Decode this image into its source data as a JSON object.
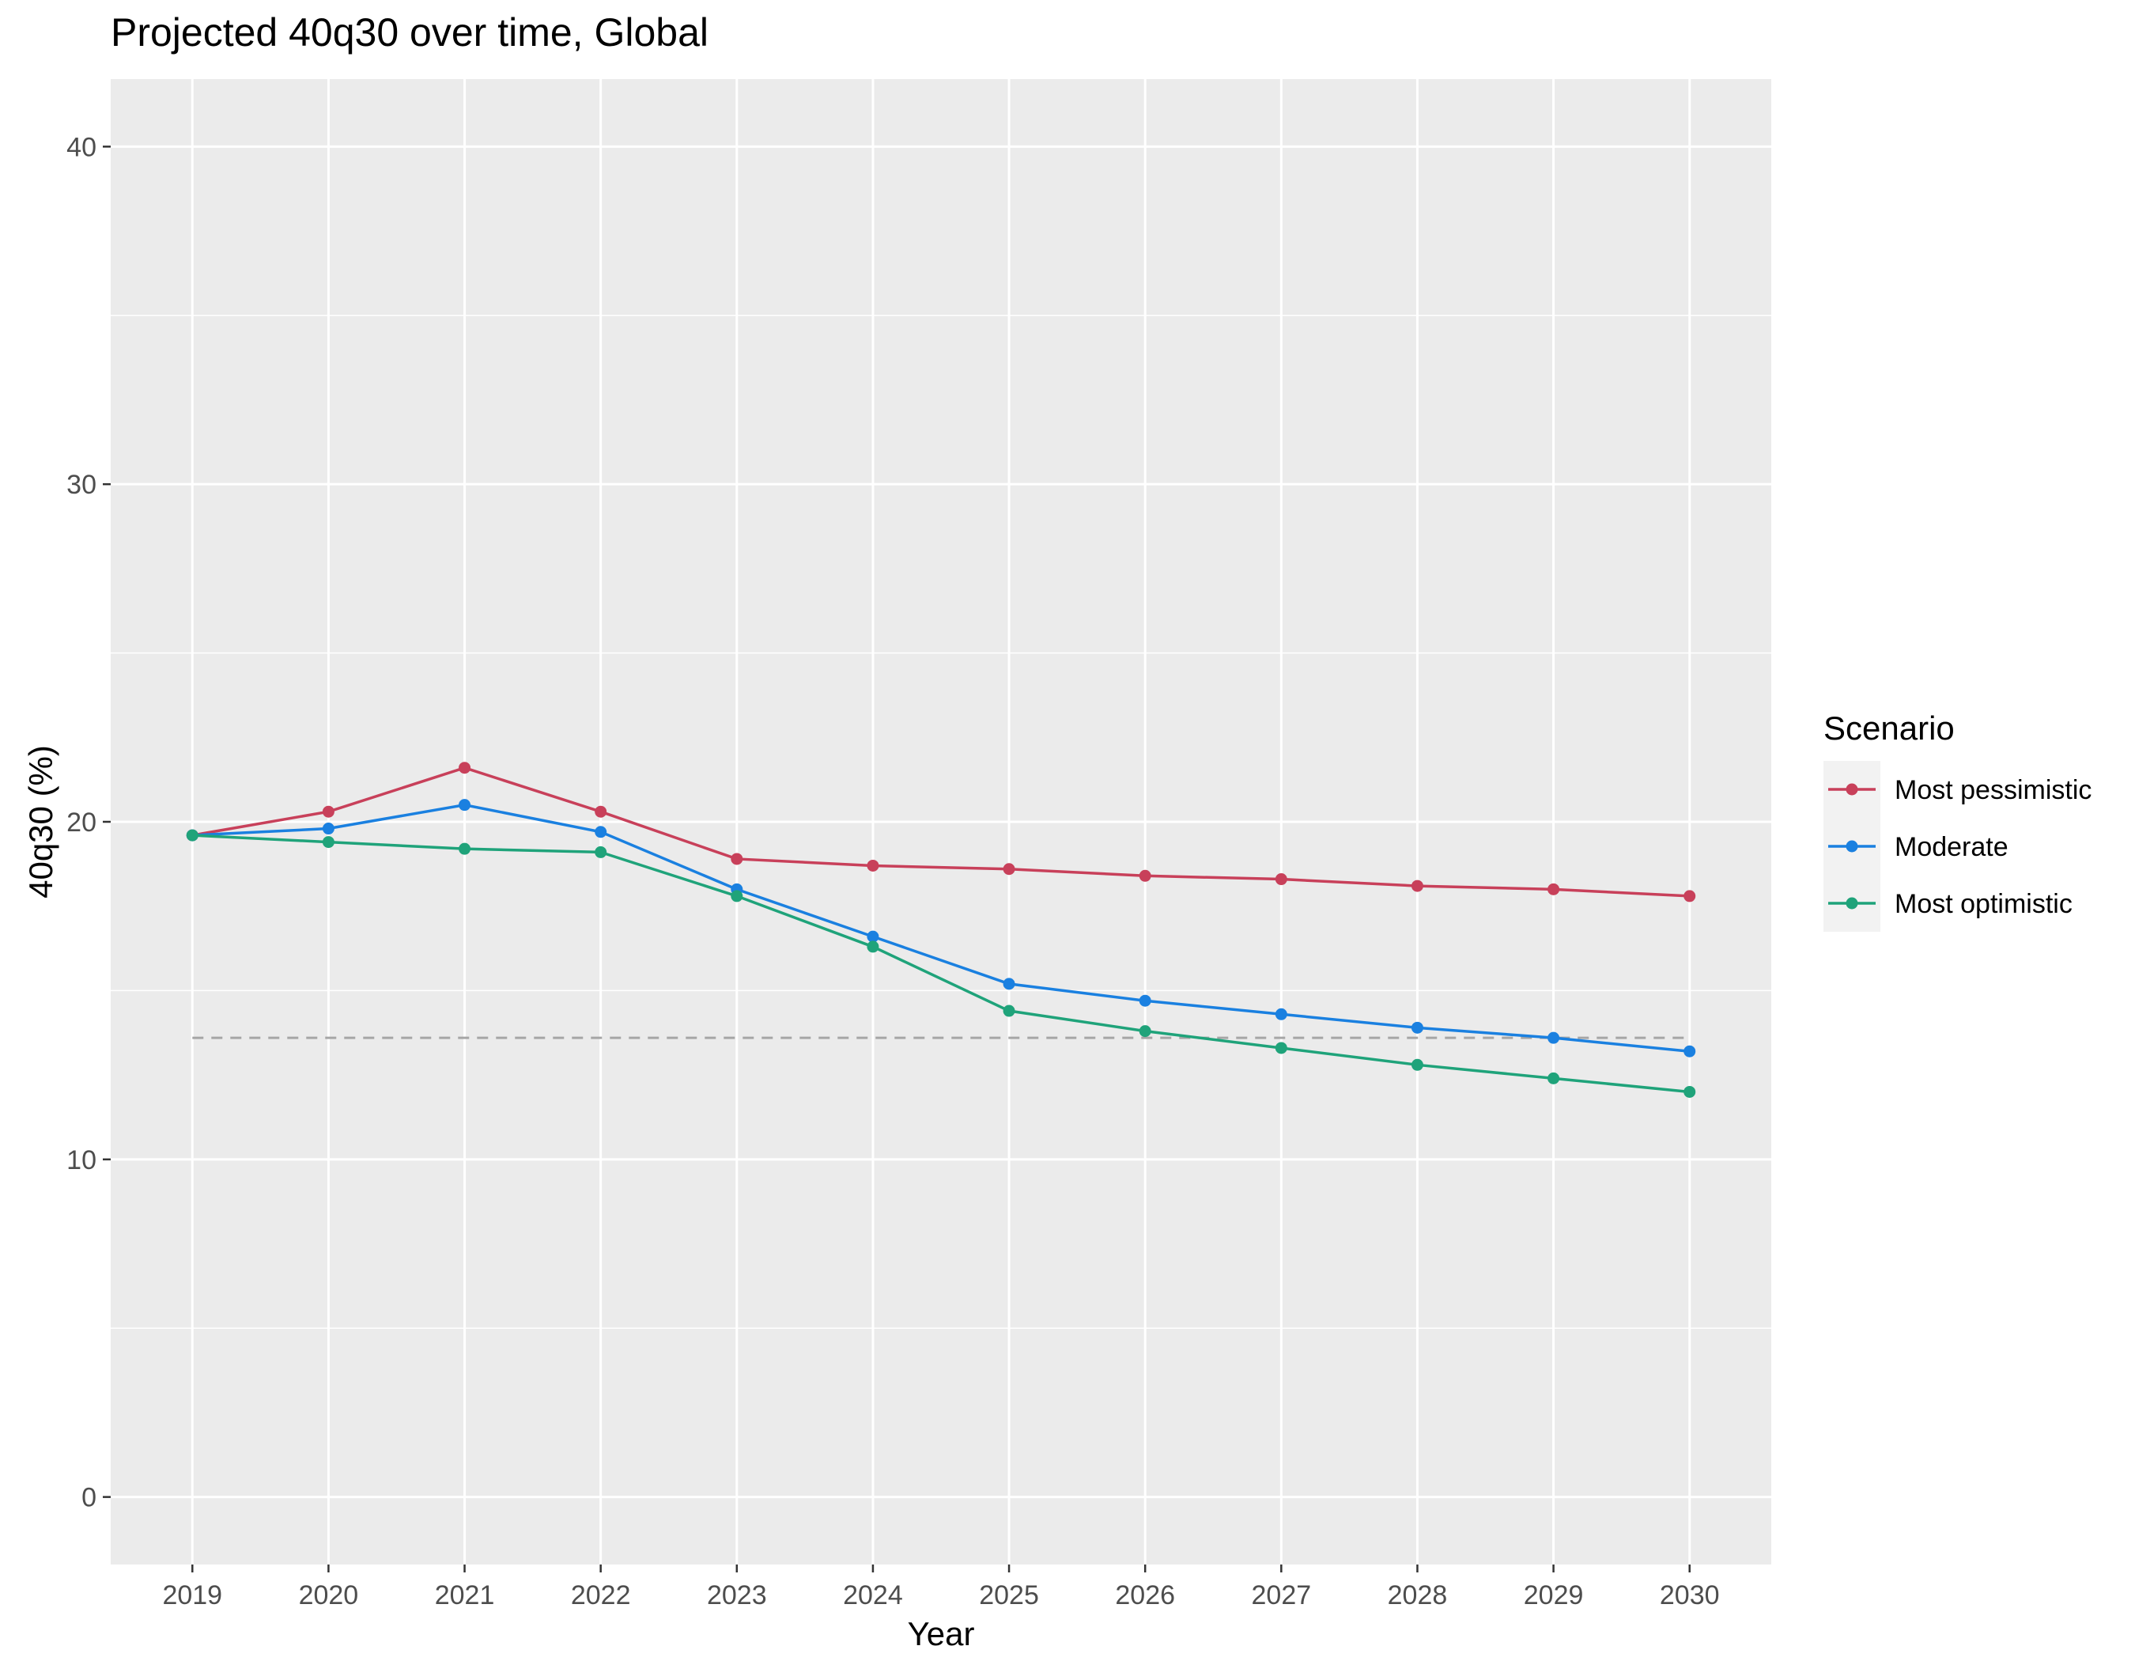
{
  "chart_data": {
    "type": "line",
    "title": "Projected 40q30 over time, Global",
    "xlabel": "Year",
    "ylabel": "40q30 (%)",
    "x": [
      2019,
      2020,
      2021,
      2022,
      2023,
      2024,
      2025,
      2026,
      2027,
      2028,
      2029,
      2030
    ],
    "xlim": [
      2018.4,
      2030.6
    ],
    "ylim": [
      -2,
      42
    ],
    "y_ticks": [
      0,
      10,
      20,
      30,
      40
    ],
    "grid": true,
    "legend_position": "right",
    "legend_title": "Scenario",
    "series": [
      {
        "name": "Most pessimistic",
        "color": "#c8405a",
        "values": [
          19.6,
          20.3,
          21.6,
          20.3,
          18.9,
          18.7,
          18.6,
          18.4,
          18.3,
          18.1,
          18.0,
          17.8
        ]
      },
      {
        "name": "Moderate",
        "color": "#1a80e0",
        "values": [
          19.6,
          19.8,
          20.5,
          19.7,
          18.0,
          16.6,
          15.2,
          14.7,
          14.3,
          13.9,
          13.6,
          13.2
        ]
      },
      {
        "name": "Most optimistic",
        "color": "#1fa37a",
        "values": [
          19.6,
          19.4,
          19.2,
          19.1,
          17.8,
          16.3,
          14.4,
          13.8,
          13.3,
          12.8,
          12.4,
          12.0
        ]
      }
    ],
    "reference_line": {
      "y": 13.6,
      "color": "#a6a6a6",
      "style": "dashed"
    }
  }
}
